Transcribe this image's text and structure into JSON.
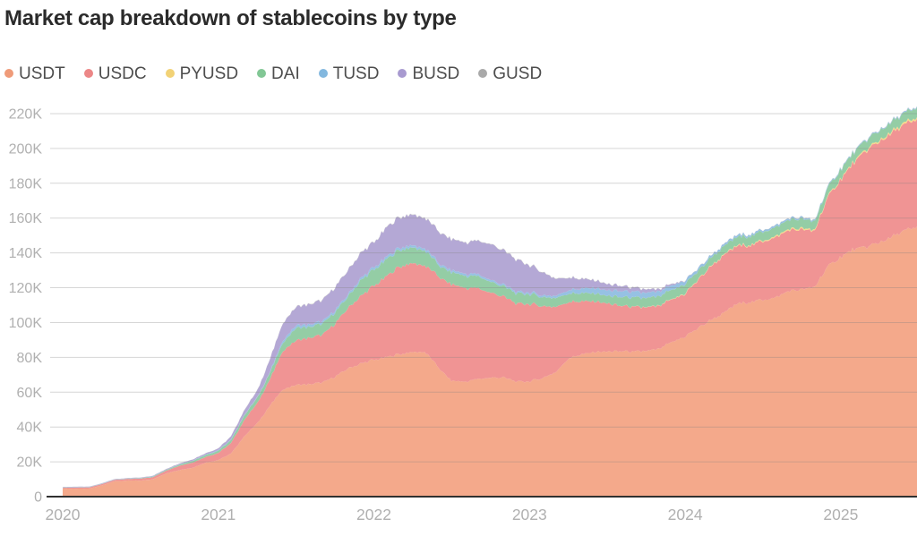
{
  "title": "Market cap breakdown of stablecoins by type",
  "colors": {
    "background": "#ffffff",
    "title_text": "#2b2b2b",
    "legend_text": "#4d4d4d",
    "axis_text": "#b0b0b0",
    "gridline": "#808080",
    "baseline": "#303030"
  },
  "chart_data": {
    "type": "area",
    "stacked": true,
    "title": "Market cap breakdown of stablecoins by type",
    "xlabel": "",
    "ylabel": "",
    "grid": true,
    "legend_position": "top-left",
    "unit": "K",
    "xlim": [
      2020.0,
      2025.49
    ],
    "ylim": [
      0,
      230
    ],
    "x_ticks": [
      2020,
      2021,
      2022,
      2023,
      2024,
      2025
    ],
    "x_tick_labels": [
      "2020",
      "2021",
      "2022",
      "2023",
      "2024",
      "2025"
    ],
    "y_ticks": [
      0,
      20,
      40,
      60,
      80,
      100,
      120,
      140,
      160,
      180,
      200,
      220
    ],
    "y_tick_labels": [
      "0",
      "20K",
      "40K",
      "60K",
      "80K",
      "100K",
      "120K",
      "140K",
      "160K",
      "180K",
      "200K",
      "220K"
    ],
    "x": [
      2020.0,
      2020.08,
      2020.17,
      2020.25,
      2020.33,
      2020.42,
      2020.5,
      2020.58,
      2020.67,
      2020.75,
      2020.83,
      2020.92,
      2021.0,
      2021.08,
      2021.17,
      2021.25,
      2021.33,
      2021.42,
      2021.5,
      2021.58,
      2021.67,
      2021.75,
      2021.83,
      2021.92,
      2022.0,
      2022.08,
      2022.17,
      2022.25,
      2022.33,
      2022.42,
      2022.5,
      2022.58,
      2022.67,
      2022.75,
      2022.83,
      2022.92,
      2023.0,
      2023.08,
      2023.17,
      2023.25,
      2023.33,
      2023.42,
      2023.5,
      2023.58,
      2023.67,
      2023.75,
      2023.83,
      2023.92,
      2024.0,
      2024.08,
      2024.17,
      2024.25,
      2024.33,
      2024.42,
      2024.5,
      2024.58,
      2024.67,
      2024.75,
      2024.83,
      2024.92,
      2025.0,
      2025.08,
      2025.17,
      2025.25,
      2025.33,
      2025.42,
      2025.48
    ],
    "series": [
      {
        "name": "USDT",
        "color": "#f4a98b",
        "dot_color": "#ef9b79",
        "values": [
          4.6,
          4.6,
          4.6,
          6.4,
          8.8,
          9.2,
          9.2,
          10.0,
          13.5,
          15.3,
          16.5,
          19.5,
          21.0,
          24.5,
          35.0,
          42.0,
          52.0,
          62.0,
          64.0,
          64.5,
          65.5,
          69.0,
          73.5,
          76.5,
          78.5,
          80.0,
          82.0,
          83.0,
          83.0,
          73.5,
          66.5,
          66.0,
          67.5,
          68.5,
          68.5,
          66.0,
          66.2,
          68.0,
          71.5,
          79.5,
          81.5,
          83.0,
          83.2,
          83.6,
          83.1,
          83.6,
          84.6,
          89.0,
          92.0,
          96.5,
          102.0,
          105.5,
          110.5,
          112.0,
          113.0,
          114.5,
          118.5,
          119.0,
          120.0,
          132.5,
          137.5,
          142.0,
          143.5,
          146.0,
          149.0,
          153.0,
          154.5
        ]
      },
      {
        "name": "USDC",
        "color": "#f09494",
        "dot_color": "#ec8787",
        "values": [
          0.52,
          0.6,
          0.7,
          0.75,
          0.8,
          0.95,
          1.1,
          1.2,
          1.6,
          2.5,
          2.9,
          3.3,
          4.1,
          5.9,
          9.5,
          11.5,
          15.0,
          22.5,
          25.5,
          26.5,
          27.5,
          30.5,
          34.5,
          39.0,
          42.5,
          46.5,
          50.5,
          51.0,
          49.5,
          52.5,
          55.5,
          54.0,
          52.0,
          49.0,
          46.5,
          44.8,
          44.6,
          41.5,
          37.5,
          32.5,
          30.5,
          29.0,
          27.6,
          26.2,
          25.6,
          25.0,
          24.6,
          24.4,
          24.6,
          27.5,
          31.0,
          33.0,
          33.2,
          32.6,
          33.6,
          34.6,
          35.0,
          34.5,
          32.0,
          40.0,
          44.5,
          49.5,
          55.5,
          58.0,
          59.5,
          61.0,
          61.5
        ]
      },
      {
        "name": "PYUSD",
        "color": "#f6d98a",
        "dot_color": "#f2d276",
        "values": [
          0,
          0,
          0,
          0,
          0,
          0,
          0,
          0,
          0,
          0,
          0,
          0,
          0,
          0,
          0,
          0,
          0,
          0,
          0,
          0,
          0,
          0,
          0,
          0,
          0,
          0,
          0,
          0,
          0,
          0,
          0,
          0,
          0,
          0,
          0,
          0,
          0,
          0,
          0,
          0,
          0,
          0,
          0,
          0.01,
          0.05,
          0.1,
          0.15,
          0.2,
          0.3,
          0.3,
          0.3,
          0.4,
          0.4,
          0.4,
          0.5,
          0.6,
          0.7,
          0.7,
          0.6,
          0.5,
          0.5,
          0.6,
          0.7,
          0.8,
          0.9,
          1.0,
          1.0
        ]
      },
      {
        "name": "DAI",
        "color": "#94cda5",
        "dot_color": "#82c795",
        "values": [
          0.12,
          0.12,
          0.08,
          0.09,
          0.1,
          0.15,
          0.25,
          0.35,
          0.45,
          0.65,
          1.0,
          1.1,
          1.3,
          1.7,
          2.6,
          3.1,
          3.8,
          4.8,
          7.2,
          6.3,
          6.3,
          6.5,
          6.6,
          9.0,
          9.2,
          9.7,
          9.6,
          9.0,
          8.6,
          6.5,
          6.9,
          7.0,
          6.9,
          6.2,
          5.9,
          5.8,
          5.7,
          5.2,
          5.1,
          4.9,
          4.7,
          4.6,
          4.4,
          5.0,
          5.3,
          5.3,
          5.3,
          5.3,
          5.3,
          4.9,
          4.7,
          4.8,
          4.8,
          5.0,
          5.1,
          5.2,
          5.3,
          5.4,
          4.9,
          5.0,
          5.3,
          5.3,
          5.4,
          5.4,
          5.5,
          5.6,
          5.7
        ]
      },
      {
        "name": "TUSD",
        "color": "#96c1e3",
        "dot_color": "#83b8df",
        "values": [
          0.14,
          0.14,
          0.14,
          0.14,
          0.14,
          0.14,
          0.14,
          0.15,
          0.15,
          0.17,
          0.2,
          0.25,
          0.3,
          0.3,
          0.3,
          0.35,
          0.4,
          1.4,
          1.5,
          1.4,
          1.3,
          1.2,
          1.2,
          1.3,
          1.4,
          1.4,
          1.3,
          1.3,
          1.3,
          1.2,
          1.2,
          1.2,
          1.2,
          1.1,
          1.0,
          0.95,
          0.95,
          1.0,
          1.3,
          2.0,
          2.6,
          3.1,
          3.1,
          3.4,
          3.3,
          3.0,
          2.8,
          2.5,
          2.0,
          1.5,
          1.2,
          1.1,
          1.1,
          1.0,
          1.0,
          1.0,
          0.9,
          0.8,
          0.7,
          0.6,
          0.5,
          0.5,
          0.5,
          0.5,
          0.5,
          0.5,
          0.5
        ]
      },
      {
        "name": "BUSD",
        "color": "#b4a8d5",
        "dot_color": "#a89ad0",
        "values": [
          0.2,
          0.2,
          0.2,
          0.2,
          0.2,
          0.2,
          0.25,
          0.3,
          0.35,
          0.45,
          0.6,
          0.75,
          1.0,
          1.8,
          2.8,
          3.7,
          7.2,
          10.0,
          10.5,
          11.5,
          12.2,
          13.2,
          13.8,
          14.5,
          14.2,
          16.8,
          17.5,
          17.6,
          17.4,
          18.1,
          17.8,
          17.9,
          19.1,
          20.6,
          19.6,
          18.3,
          15.6,
          13.4,
          9.7,
          7.2,
          5.6,
          4.4,
          3.6,
          3.0,
          2.3,
          1.9,
          1.3,
          0.8,
          0.15,
          0.05,
          0.02,
          0.02,
          0.01,
          0.01,
          0.01,
          0.01,
          0.01,
          0,
          0,
          0,
          0,
          0,
          0,
          0,
          0,
          0,
          0
        ]
      },
      {
        "name": "GUSD",
        "color": "#bdbdbd",
        "dot_color": "#a9a9a9",
        "values": [
          0.05,
          0.05,
          0.05,
          0.05,
          0.05,
          0.05,
          0.05,
          0.06,
          0.08,
          0.1,
          0.1,
          0.1,
          0.1,
          0.12,
          0.15,
          0.2,
          0.2,
          0.2,
          0.2,
          0.2,
          0.2,
          0.2,
          0.2,
          0.2,
          0.2,
          0.2,
          0.2,
          0.2,
          0.2,
          0.2,
          0.2,
          0.2,
          0.2,
          0.2,
          0.2,
          0.2,
          0.2,
          0.2,
          0.2,
          0.2,
          0.2,
          0.2,
          0.15,
          0.15,
          0.15,
          0.15,
          0.12,
          0.12,
          0.12,
          0.12,
          0.12,
          0.12,
          0.12,
          0.12,
          0.12,
          0.12,
          0.12,
          0.12,
          0.12,
          0.12,
          0.12,
          0.12,
          0.12,
          0.12,
          0.12,
          0.12,
          0.12
        ]
      }
    ]
  }
}
